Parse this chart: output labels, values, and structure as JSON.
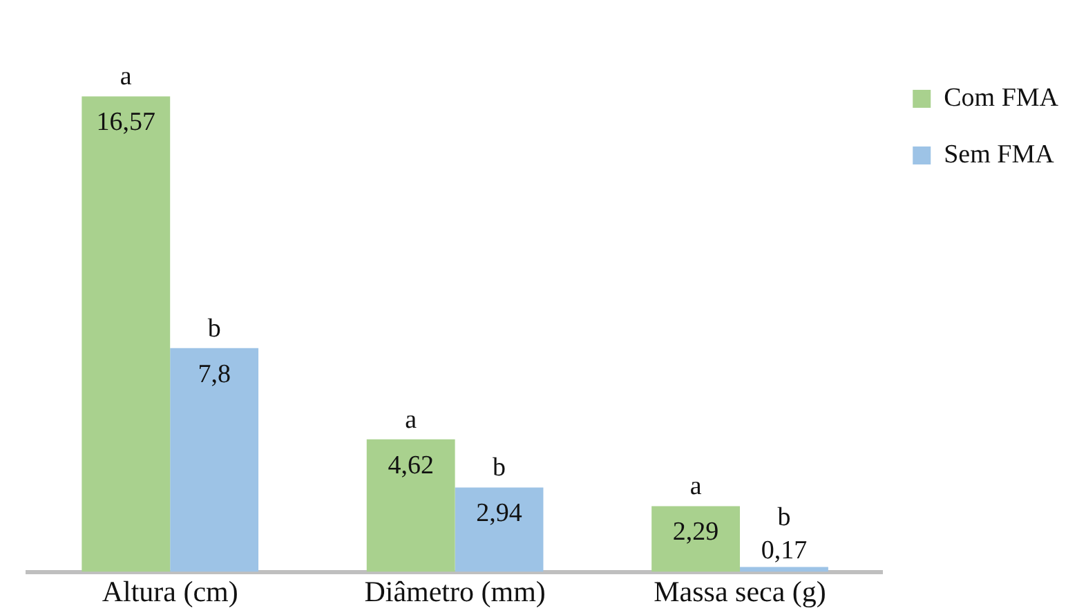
{
  "chart_data": {
    "type": "bar",
    "categories": [
      "Altura (cm)",
      "Diâmetro (mm)",
      "Massa seca (g)"
    ],
    "series": [
      {
        "name": "Com FMA",
        "color": "#a9d18e",
        "values": [
          16.57,
          4.62,
          2.29
        ],
        "value_labels": [
          "16,57",
          "4,62",
          "2,29"
        ]
      },
      {
        "name": "Sem FMA",
        "color": "#9dc3e6",
        "values": [
          7.8,
          2.94,
          0.17
        ],
        "value_labels": [
          "7,8",
          "2,94",
          "0,17"
        ]
      }
    ],
    "annotations": [
      {
        "text": "a",
        "x": "Altura (cm)",
        "y": 16.57
      },
      {
        "text": "b",
        "x": "Altura (cm)",
        "y": 7.8
      },
      {
        "text": "a",
        "x": "Diâmetro (mm)",
        "y": 4.62
      },
      {
        "text": "b",
        "x": "Diâmetro (mm)",
        "y": 2.94
      },
      {
        "text": "a",
        "x": "Massa seca (g)",
        "y": 2.29
      },
      {
        "text": "b",
        "x": "Massa seca (g)",
        "y": 0.17
      }
    ],
    "legend": "right",
    "grid": false,
    "tick_labels": "x"
  }
}
